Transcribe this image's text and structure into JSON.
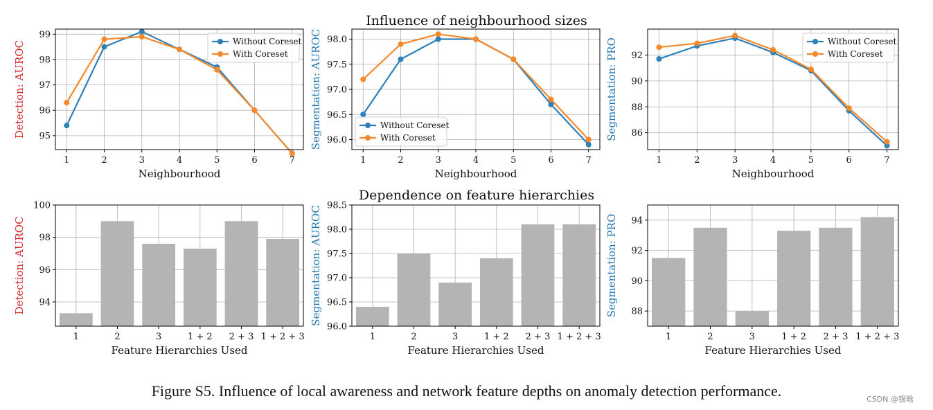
{
  "colors": {
    "without": "#2f7fb8",
    "with": "#f5892a",
    "bar": "#b4b4b4",
    "grid": "#b0b0b0",
    "red": "#d62728",
    "blue": "#1f77b4"
  },
  "row_titles": [
    "Influence of neighbourhood sizes",
    "Dependence on feature hierarchies"
  ],
  "chart_data": [
    {
      "type": "line",
      "x": [
        1,
        2,
        3,
        4,
        5,
        6,
        7
      ],
      "xticks": [
        "1",
        "2",
        "3",
        "4",
        "5",
        "6",
        "7"
      ],
      "xlabel": "Neighbourhood",
      "ylabel": "Detection: AUROC",
      "ylabel_color": "red",
      "ylim": [
        94.45,
        99.2
      ],
      "yticks": [
        "95",
        "96",
        "97",
        "98",
        "99"
      ],
      "ytick_values": [
        95,
        96,
        97,
        98,
        99
      ],
      "legend": "top-right",
      "grid": true,
      "series": [
        {
          "name": "Without Coreset",
          "key": "without",
          "values": [
            95.4,
            98.5,
            99.1,
            98.4,
            97.7,
            96.0,
            94.3
          ]
        },
        {
          "name": "With Coreset",
          "key": "with",
          "values": [
            96.3,
            98.8,
            98.9,
            98.4,
            97.6,
            96.0,
            94.3
          ]
        }
      ]
    },
    {
      "type": "line",
      "x": [
        1,
        2,
        3,
        4,
        5,
        6,
        7
      ],
      "xticks": [
        "1",
        "2",
        "3",
        "4",
        "5",
        "6",
        "7"
      ],
      "xlabel": "Neighbourhood",
      "ylabel": "Segmentation: AUROC",
      "ylabel_color": "blue",
      "ylim": [
        95.8,
        98.2
      ],
      "yticks": [
        "96.0",
        "96.5",
        "97.0",
        "97.5",
        "98.0"
      ],
      "ytick_values": [
        96.0,
        96.5,
        97.0,
        97.5,
        98.0
      ],
      "legend": "bottom-left",
      "grid": true,
      "series": [
        {
          "name": "Without Coreset",
          "key": "without",
          "values": [
            96.5,
            97.6,
            98.0,
            98.0,
            97.6,
            96.7,
            95.9
          ]
        },
        {
          "name": "With Coreset",
          "key": "with",
          "values": [
            97.2,
            97.9,
            98.1,
            98.0,
            97.6,
            96.8,
            96.0
          ]
        }
      ]
    },
    {
      "type": "line",
      "x": [
        1,
        2,
        3,
        4,
        5,
        6,
        7
      ],
      "xticks": [
        "1",
        "2",
        "3",
        "4",
        "5",
        "6",
        "7"
      ],
      "xlabel": "Neighbourhood",
      "ylabel": "Segmentation: PRO",
      "ylabel_color": "blue",
      "ylim": [
        84.7,
        94.0
      ],
      "yticks": [
        "86",
        "88",
        "90",
        "92"
      ],
      "ytick_values": [
        86,
        88,
        90,
        92
      ],
      "legend": "top-right",
      "grid": true,
      "series": [
        {
          "name": "Without Coreset",
          "key": "without",
          "values": [
            91.7,
            92.7,
            93.3,
            92.2,
            90.8,
            87.7,
            85.0
          ]
        },
        {
          "name": "With Coreset",
          "key": "with",
          "values": [
            92.6,
            92.9,
            93.5,
            92.4,
            90.9,
            87.9,
            85.3
          ]
        }
      ]
    },
    {
      "type": "bar",
      "categories": [
        "1",
        "2",
        "3",
        "1 + 2",
        "2 + 3",
        "1 + 2 + 3"
      ],
      "xlabel": "Feature Hierarchies Used",
      "ylabel": "Detection: AUROC",
      "ylabel_color": "red",
      "ylim": [
        92.5,
        100
      ],
      "yticks": [
        "94",
        "96",
        "98",
        "100"
      ],
      "ytick_values": [
        94,
        96,
        98,
        100
      ],
      "grid": true,
      "values": [
        93.3,
        99.0,
        97.6,
        97.3,
        99.0,
        97.9
      ]
    },
    {
      "type": "bar",
      "categories": [
        "1",
        "2",
        "3",
        "1 + 2",
        "2 + 3",
        "1 + 2 + 3"
      ],
      "xlabel": "Feature Hierarchies Used",
      "ylabel": "Segmentation: AUROC",
      "ylabel_color": "blue",
      "ylim": [
        96.0,
        98.5
      ],
      "yticks": [
        "96.0",
        "96.5",
        "97.0",
        "97.5",
        "98.0",
        "98.5"
      ],
      "ytick_values": [
        96.0,
        96.5,
        97.0,
        97.5,
        98.0,
        98.5
      ],
      "grid": true,
      "values": [
        96.4,
        97.5,
        96.9,
        97.4,
        98.1,
        98.1
      ]
    },
    {
      "type": "bar",
      "categories": [
        "1",
        "2",
        "3",
        "1 + 2",
        "2 + 3",
        "1 + 2 + 3"
      ],
      "xlabel": "Feature Hierarchies Used",
      "ylabel": "Segmentation: PRO",
      "ylabel_color": "blue",
      "ylim": [
        87.0,
        95.0
      ],
      "yticks": [
        "88",
        "90",
        "92",
        "94"
      ],
      "ytick_values": [
        88,
        90,
        92,
        94
      ],
      "grid": true,
      "values": [
        91.5,
        93.5,
        88.0,
        93.3,
        93.5,
        94.2
      ]
    }
  ],
  "caption": "Figure S5. Influence of local awareness and network feature depths on anomaly detection performance.",
  "watermark": "CSDN @银晗"
}
